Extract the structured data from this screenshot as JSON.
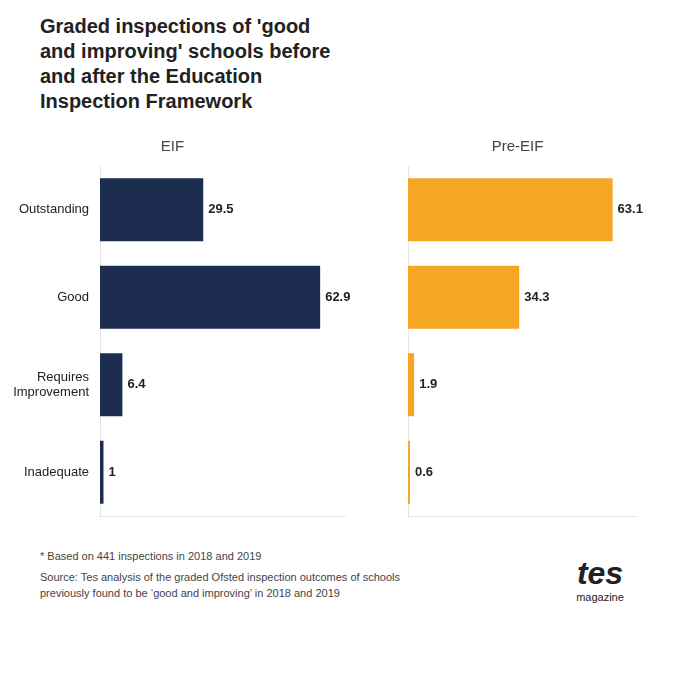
{
  "chart_data": {
    "type": "bar",
    "orientation": "horizontal",
    "title": "Graded inspections of 'good\nand improving' schools before\nand after the Education\nInspection Framework",
    "categories": [
      "Outstanding",
      "Good",
      "Requires\nImprovement",
      "Inadequate"
    ],
    "series": [
      {
        "name": "EIF",
        "color": "#1c2d4f",
        "values": [
          29.5,
          62.9,
          6.4,
          1
        ]
      },
      {
        "name": "Pre-EIF",
        "color": "#f5a623",
        "values": [
          63.1,
          34.3,
          1.9,
          0.6
        ]
      }
    ],
    "xlim": [
      0,
      70
    ],
    "grid": false,
    "tick_labels": "y",
    "data_labels": true,
    "annotations": [
      "* Based on 441 inspections in 2018 and 2019",
      "Source: Tes analysis of the graded Ofsted inspection outcomes of schools\npreviously found to be ‘good and improving’ in 2018 and 2019",
      "tes",
      "magazine"
    ]
  }
}
